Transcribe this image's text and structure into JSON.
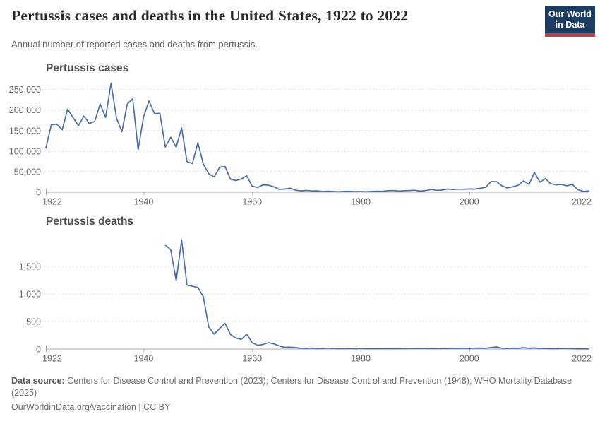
{
  "header": {
    "title": "Pertussis cases and deaths in the United States, 1922 to 2022",
    "subtitle": "Annual number of reported cases and deaths from pertussis."
  },
  "logo": {
    "line1": "Our World",
    "line2": "in Data",
    "bg_color": "#1d3d63",
    "bar_color": "#cc3b44"
  },
  "chart_data": [
    {
      "type": "line",
      "title": "Pertussis cases",
      "xlabel": "",
      "ylabel": "",
      "xlim": [
        1922,
        2022
      ],
      "ylim": [
        0,
        270000
      ],
      "yticks": [
        0,
        50000,
        100000,
        150000,
        200000,
        250000
      ],
      "ytick_labels": [
        "0",
        "50,000",
        "100,000",
        "150,000",
        "200,000",
        "250,000"
      ],
      "xticks": [
        1922,
        1940,
        1960,
        1980,
        2000,
        2022
      ],
      "xtick_labels": [
        "1922",
        "1940",
        "1960",
        "1980",
        "2000",
        "2022"
      ],
      "grid": "horizontal-dashed",
      "legend": "none",
      "series": [
        {
          "name": "Pertussis cases",
          "color": "#4c6ea8",
          "x": [
            1922,
            1923,
            1924,
            1925,
            1926,
            1927,
            1928,
            1929,
            1930,
            1931,
            1932,
            1933,
            1934,
            1935,
            1936,
            1937,
            1938,
            1939,
            1940,
            1941,
            1942,
            1943,
            1944,
            1945,
            1946,
            1947,
            1948,
            1949,
            1950,
            1951,
            1952,
            1953,
            1954,
            1955,
            1956,
            1957,
            1958,
            1959,
            1960,
            1961,
            1962,
            1963,
            1964,
            1965,
            1966,
            1967,
            1968,
            1969,
            1970,
            1971,
            1972,
            1973,
            1974,
            1975,
            1976,
            1977,
            1978,
            1979,
            1980,
            1981,
            1982,
            1983,
            1984,
            1985,
            1986,
            1987,
            1988,
            1989,
            1990,
            1991,
            1992,
            1993,
            1994,
            1995,
            1996,
            1997,
            1998,
            1999,
            2000,
            2001,
            2002,
            2003,
            2004,
            2005,
            2006,
            2007,
            2008,
            2009,
            2010,
            2011,
            2012,
            2013,
            2014,
            2015,
            2016,
            2017,
            2018,
            2019,
            2020,
            2021,
            2022
          ],
          "values": [
            107473,
            164191,
            165418,
            152003,
            202210,
            181411,
            161799,
            185243,
            166914,
            172559,
            214870,
            181714,
            265269,
            180518,
            147237,
            214652,
            227319,
            103188,
            183866,
            222202,
            191383,
            191890,
            109873,
            133792,
            109860,
            156517,
            74715,
            69479,
            120718,
            68687,
            45030,
            37129,
            60886,
            62786,
            31732,
            28295,
            32148,
            40005,
            14809,
            11468,
            17749,
            17135,
            13005,
            6799,
            7717,
            9718,
            4810,
            3285,
            4249,
            3036,
            3287,
            1759,
            2402,
            1738,
            1010,
            2177,
            2063,
            1623,
            1730,
            1248,
            1895,
            2463,
            2276,
            3589,
            4195,
            2823,
            3450,
            4157,
            4570,
            2719,
            4083,
            6586,
            4617,
            5137,
            7796,
            6564,
            7405,
            7298,
            7867,
            7580,
            9771,
            11647,
            25827,
            25616,
            15632,
            10454,
            13278,
            16858,
            27550,
            18719,
            48277,
            24231,
            32971,
            20762,
            17972,
            18975,
            15609,
            18617,
            6124,
            2116,
            3044
          ]
        }
      ]
    },
    {
      "type": "line",
      "title": "Pertussis deaths",
      "xlabel": "",
      "ylabel": "",
      "xlim": [
        1922,
        2022
      ],
      "ylim": [
        0,
        2000
      ],
      "yticks": [
        0,
        500,
        1000,
        1500
      ],
      "ytick_labels": [
        "0",
        "500",
        "1,000",
        "1,500"
      ],
      "xticks": [
        1922,
        1940,
        1960,
        1980,
        2000,
        2022
      ],
      "xtick_labels": [
        "1922",
        "1940",
        "1960",
        "1980",
        "2000",
        "2022"
      ],
      "grid": "horizontal-dashed",
      "legend": "none",
      "series": [
        {
          "name": "Pertussis deaths",
          "color": "#4c6ea8",
          "x": [
            1944,
            1945,
            1946,
            1947,
            1948,
            1949,
            1950,
            1951,
            1952,
            1953,
            1954,
            1955,
            1956,
            1957,
            1958,
            1959,
            1960,
            1961,
            1962,
            1963,
            1964,
            1965,
            1966,
            1967,
            1968,
            1969,
            1970,
            1971,
            1972,
            1973,
            1974,
            1975,
            1976,
            1977,
            1978,
            1979,
            1980,
            1981,
            1982,
            1983,
            1984,
            1985,
            1986,
            1987,
            1988,
            1989,
            1990,
            1991,
            1992,
            1993,
            1994,
            1995,
            1996,
            1997,
            1998,
            1999,
            2000,
            2001,
            2002,
            2003,
            2004,
            2005,
            2006,
            2007,
            2008,
            2009,
            2010,
            2011,
            2012,
            2013,
            2014,
            2015,
            2016,
            2017,
            2018,
            2019,
            2020,
            2021,
            2022
          ],
          "values": [
            1890,
            1800,
            1240,
            1980,
            1160,
            1140,
            1118,
            951,
            402,
            270,
            373,
            467,
            266,
            200,
            177,
            269,
            118,
            68,
            83,
            115,
            93,
            55,
            32,
            33,
            26,
            15,
            12,
            18,
            8,
            10,
            17,
            10,
            8,
            9,
            12,
            7,
            11,
            6,
            7,
            7,
            7,
            8,
            7,
            9,
            8,
            10,
            12,
            12,
            11,
            9,
            11,
            9,
            12,
            15,
            14,
            17,
            12,
            17,
            18,
            16,
            27,
            39,
            16,
            10,
            18,
            14,
            26,
            15,
            20,
            13,
            13,
            6,
            7,
            13,
            10,
            6,
            2,
            2,
            3
          ]
        }
      ]
    }
  ],
  "footer": {
    "source_label": "Data source:",
    "source_text": "Centers for Disease Control and Prevention (2023); Centers for Disease Control and Prevention (1948); WHO Mortality Database (2025)",
    "note": "OurWorldinData.org/vaccination | CC BY"
  }
}
